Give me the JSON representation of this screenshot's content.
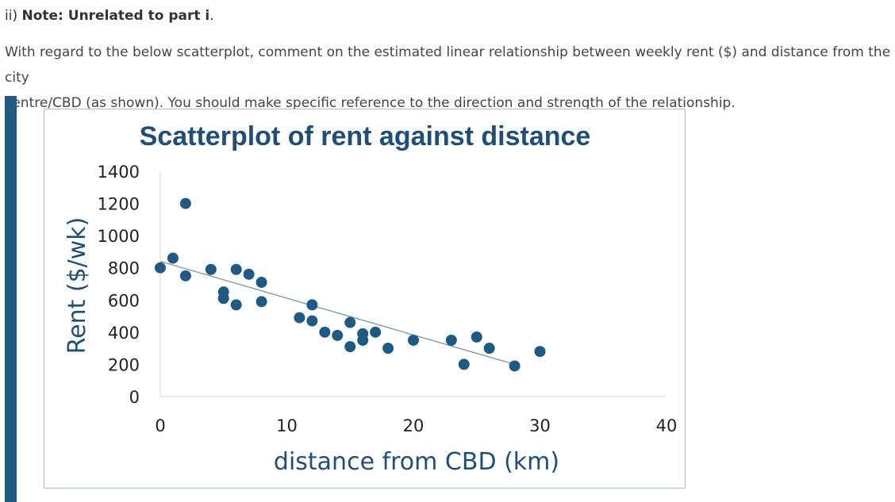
{
  "question": {
    "prefix": "ii) ",
    "note": "Note: Unrelated to part i",
    "suffix": ".",
    "body_line1": "With regard to the below scatterplot, comment on the estimated linear relationship between weekly rent ($) and distance from the city",
    "body_line2": "centre/CBD (as shown). You should make specific reference to the direction and strength of the relationship."
  },
  "colors": {
    "accent": "#1f5a84",
    "point": "#1f5a84",
    "trend": "#7f93a8",
    "frame": "#a9bfcf"
  },
  "chart_data": {
    "type": "scatter",
    "title": "Scatterplot of rent against distance",
    "xlabel": "distance from CBD (km)",
    "ylabel": "Rent ($/wk)",
    "xlim": [
      0,
      40
    ],
    "ylim": [
      0,
      1400
    ],
    "xticks": [
      0,
      10,
      20,
      30,
      40
    ],
    "yticks": [
      0,
      200,
      400,
      600,
      800,
      1000,
      1200,
      1400
    ],
    "points": [
      {
        "x": 0,
        "y": 800
      },
      {
        "x": 1,
        "y": 860
      },
      {
        "x": 2,
        "y": 1200
      },
      {
        "x": 2,
        "y": 750
      },
      {
        "x": 4,
        "y": 790
      },
      {
        "x": 5,
        "y": 650
      },
      {
        "x": 5,
        "y": 610
      },
      {
        "x": 6,
        "y": 790
      },
      {
        "x": 6,
        "y": 570
      },
      {
        "x": 7,
        "y": 760
      },
      {
        "x": 8,
        "y": 710
      },
      {
        "x": 8,
        "y": 590
      },
      {
        "x": 11,
        "y": 490
      },
      {
        "x": 12,
        "y": 570
      },
      {
        "x": 12,
        "y": 470
      },
      {
        "x": 13,
        "y": 400
      },
      {
        "x": 14,
        "y": 380
      },
      {
        "x": 15,
        "y": 460
      },
      {
        "x": 15,
        "y": 310
      },
      {
        "x": 16,
        "y": 390
      },
      {
        "x": 16,
        "y": 350
      },
      {
        "x": 17,
        "y": 400
      },
      {
        "x": 18,
        "y": 300
      },
      {
        "x": 20,
        "y": 350
      },
      {
        "x": 23,
        "y": 350
      },
      {
        "x": 24,
        "y": 200
      },
      {
        "x": 25,
        "y": 370
      },
      {
        "x": 26,
        "y": 300
      },
      {
        "x": 28,
        "y": 190
      },
      {
        "x": 30,
        "y": 280
      }
    ],
    "trendline": {
      "x": [
        0,
        28
      ],
      "y": [
        840,
        200
      ]
    }
  }
}
